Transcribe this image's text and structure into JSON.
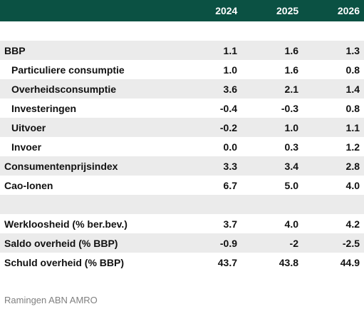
{
  "header": {
    "years": [
      "2024",
      "2025",
      "2026"
    ]
  },
  "rows": [
    {
      "label": "BBP",
      "values": [
        "1.1",
        "1.6",
        "1.3"
      ]
    },
    {
      "label": "Particuliere consumptie",
      "values": [
        "1.0",
        "1.6",
        "0.8"
      ]
    },
    {
      "label": "Overheidsconsumptie",
      "values": [
        "3.6",
        "2.1",
        "1.4"
      ]
    },
    {
      "label": "Investeringen",
      "values": [
        "-0.4",
        "-0.3",
        "0.8"
      ]
    },
    {
      "label": "Uitvoer",
      "values": [
        "-0.2",
        "1.0",
        "1.1"
      ]
    },
    {
      "label": "Invoer",
      "values": [
        "0.0",
        "0.3",
        "1.2"
      ]
    },
    {
      "label": "Consumentenprijsindex",
      "values": [
        "3.3",
        "3.4",
        "2.8"
      ]
    },
    {
      "label": "Cao-lonen",
      "values": [
        "6.7",
        "5.0",
        "4.0"
      ]
    },
    {
      "label": "Werkloosheid (% ber.bev.)",
      "values": [
        "3.7",
        "4.0",
        "4.2"
      ]
    },
    {
      "label": "Saldo overheid (% BBP)",
      "values": [
        "-0.9",
        "-2",
        "-2.5"
      ]
    },
    {
      "label": "Schuld overheid (% BBP)",
      "values": [
        "43.7",
        "43.8",
        "44.9"
      ]
    }
  ],
  "footer": {
    "source": "Ramingen ABN AMRO"
  },
  "colors": {
    "header_bg": "#0b5143",
    "row_shade": "#ebebeb",
    "footer_text": "#808080"
  }
}
